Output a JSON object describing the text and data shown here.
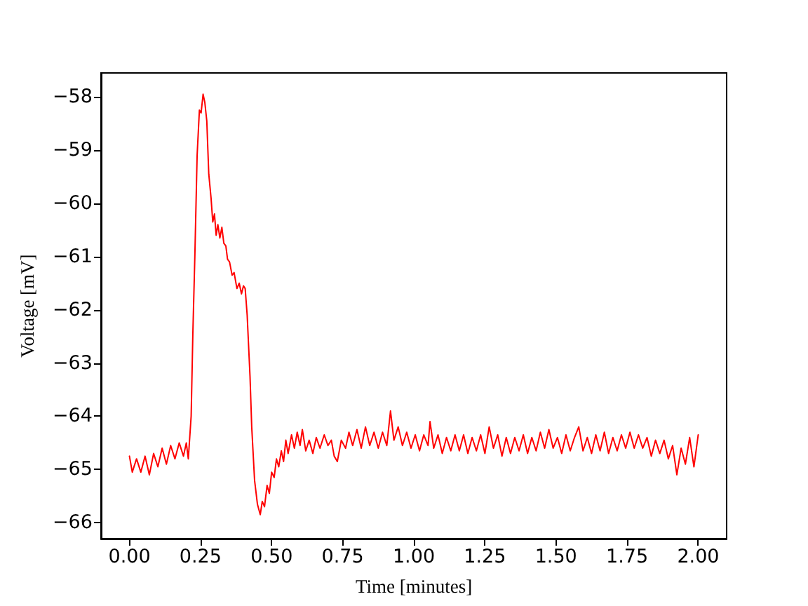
{
  "chart_data": {
    "type": "line",
    "xlabel": "Time [minutes]",
    "ylabel": "Voltage [mV]",
    "xlim": [
      -0.1,
      2.1
    ],
    "xticks": [
      {
        "value": 0,
        "label": "0.00"
      },
      {
        "value": 0.25,
        "label": "0.25"
      },
      {
        "value": 0.5,
        "label": "0.50"
      },
      {
        "value": 0.75,
        "label": "0.75"
      },
      {
        "value": 1,
        "label": "1.00"
      },
      {
        "value": 1.25,
        "label": "1.25"
      },
      {
        "value": 1.5,
        "label": "1.50"
      },
      {
        "value": 1.75,
        "label": "1.75"
      },
      {
        "value": 2,
        "label": "2.00"
      }
    ],
    "ylim": [
      -66.3,
      -57.55
    ],
    "yticks": [
      -66,
      -65,
      -64,
      -63,
      -62,
      -61,
      -60,
      -59,
      -58
    ],
    "grid": false,
    "marker": "none",
    "line_style": "solid",
    "series": [
      {
        "color": "#ff0000",
        "x": [
          0,
          0.01,
          0.025,
          0.04,
          0.055,
          0.07,
          0.085,
          0.1,
          0.115,
          0.13,
          0.145,
          0.16,
          0.175,
          0.19,
          0.2,
          0.207,
          0.212,
          0.217,
          0.223,
          0.23,
          0.238,
          0.246,
          0.252,
          0.259,
          0.265,
          0.272,
          0.279,
          0.287,
          0.293,
          0.299,
          0.305,
          0.311,
          0.318,
          0.325,
          0.332,
          0.339,
          0.345,
          0.352,
          0.361,
          0.368,
          0.378,
          0.386,
          0.394,
          0.401,
          0.407,
          0.414,
          0.424,
          0.43,
          0.44,
          0.45,
          0.46,
          0.467,
          0.475,
          0.484,
          0.492,
          0.5,
          0.509,
          0.517,
          0.525,
          0.534,
          0.542,
          0.55,
          0.558,
          0.57,
          0.58,
          0.59,
          0.6,
          0.608,
          0.62,
          0.632,
          0.645,
          0.657,
          0.67,
          0.685,
          0.698,
          0.71,
          0.72,
          0.731,
          0.745,
          0.76,
          0.772,
          0.785,
          0.8,
          0.815,
          0.83,
          0.845,
          0.86,
          0.875,
          0.89,
          0.905,
          0.918,
          0.93,
          0.945,
          0.96,
          0.975,
          0.99,
          1.005,
          1.02,
          1.035,
          1.05,
          1.057,
          1.07,
          1.085,
          1.1,
          1.115,
          1.13,
          1.145,
          1.16,
          1.175,
          1.19,
          1.205,
          1.22,
          1.235,
          1.25,
          1.265,
          1.28,
          1.295,
          1.31,
          1.325,
          1.34,
          1.355,
          1.37,
          1.385,
          1.4,
          1.415,
          1.43,
          1.445,
          1.46,
          1.475,
          1.49,
          1.505,
          1.52,
          1.535,
          1.55,
          1.565,
          1.58,
          1.595,
          1.61,
          1.625,
          1.64,
          1.655,
          1.67,
          1.685,
          1.7,
          1.715,
          1.73,
          1.745,
          1.76,
          1.775,
          1.79,
          1.805,
          1.82,
          1.835,
          1.85,
          1.865,
          1.88,
          1.895,
          1.91,
          1.925,
          1.94,
          1.955,
          1.97,
          1.985,
          2.0
        ],
        "values": [
          -64.75,
          -65.05,
          -64.8,
          -65.05,
          -64.75,
          -65.1,
          -64.7,
          -64.95,
          -64.6,
          -64.9,
          -64.55,
          -64.8,
          -64.5,
          -64.75,
          -64.5,
          -64.8,
          -64.4,
          -64.0,
          -62.45,
          -61.0,
          -59.1,
          -58.25,
          -58.3,
          -57.95,
          -58.1,
          -58.45,
          -59.45,
          -59.9,
          -60.35,
          -60.2,
          -60.6,
          -60.4,
          -60.65,
          -60.45,
          -60.75,
          -60.8,
          -61.05,
          -61.1,
          -61.35,
          -61.3,
          -61.6,
          -61.5,
          -61.7,
          -61.55,
          -61.6,
          -62.1,
          -63.25,
          -64.2,
          -65.2,
          -65.65,
          -65.85,
          -65.6,
          -65.7,
          -65.3,
          -65.45,
          -65.05,
          -65.15,
          -64.8,
          -64.95,
          -64.65,
          -64.85,
          -64.45,
          -64.7,
          -64.35,
          -64.6,
          -64.3,
          -64.55,
          -64.25,
          -64.65,
          -64.45,
          -64.7,
          -64.4,
          -64.6,
          -64.35,
          -64.55,
          -64.45,
          -64.75,
          -64.85,
          -64.45,
          -64.6,
          -64.3,
          -64.55,
          -64.25,
          -64.6,
          -64.2,
          -64.55,
          -64.3,
          -64.6,
          -64.3,
          -64.55,
          -63.9,
          -64.45,
          -64.2,
          -64.55,
          -64.3,
          -64.6,
          -64.35,
          -64.65,
          -64.35,
          -64.55,
          -64.1,
          -64.6,
          -64.35,
          -64.7,
          -64.4,
          -64.65,
          -64.35,
          -64.65,
          -64.35,
          -64.7,
          -64.4,
          -64.65,
          -64.35,
          -64.7,
          -64.2,
          -64.6,
          -64.35,
          -64.75,
          -64.4,
          -64.7,
          -64.4,
          -64.65,
          -64.35,
          -64.7,
          -64.4,
          -64.65,
          -64.3,
          -64.6,
          -64.25,
          -64.6,
          -64.4,
          -64.7,
          -64.35,
          -64.65,
          -64.4,
          -64.2,
          -64.65,
          -64.4,
          -64.7,
          -64.35,
          -64.65,
          -64.3,
          -64.7,
          -64.4,
          -64.65,
          -64.35,
          -64.6,
          -64.3,
          -64.6,
          -64.35,
          -64.6,
          -64.4,
          -64.75,
          -64.45,
          -64.7,
          -64.45,
          -64.8,
          -64.55,
          -65.1,
          -64.6,
          -64.9,
          -64.4,
          -64.95,
          -64.35
        ]
      }
    ]
  }
}
